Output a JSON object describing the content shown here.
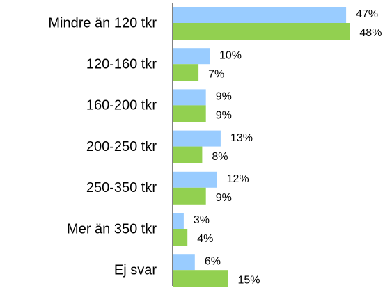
{
  "chart_data": {
    "type": "bar",
    "orientation": "horizontal",
    "categories": [
      "Mindre än 120 tkr",
      "120-160 tkr",
      "160-200 tkr",
      "200-250 tkr",
      "250-350 tkr",
      "Mer än 350 tkr",
      "Ej svar"
    ],
    "series": [
      {
        "color": "#99ccff",
        "values": [
          47,
          10,
          9,
          13,
          12,
          3,
          6
        ],
        "value_labels": [
          "47%",
          "10%",
          "9%",
          "13%",
          "12%",
          "3%",
          "6%"
        ]
      },
      {
        "color": "#92d050",
        "values": [
          48,
          7,
          9,
          8,
          9,
          4,
          15
        ],
        "value_labels": [
          "48%",
          "7%",
          "9%",
          "8%",
          "9%",
          "4%",
          "15%"
        ]
      }
    ],
    "xlim": [
      0,
      50
    ]
  }
}
